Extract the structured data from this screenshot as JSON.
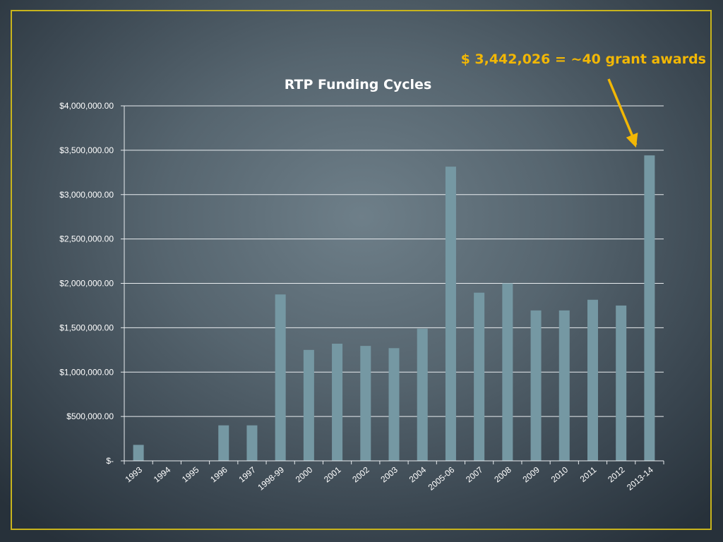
{
  "colors": {
    "frame": "#c8b41c",
    "bar": "#7598a3",
    "grid": "#e8ecef",
    "annotation": "#f2b705",
    "text": "#ffffff"
  },
  "annotation": {
    "text": "$ 3,442,026 = ~40 grant awards",
    "points_to": "2013-14"
  },
  "chart_data": {
    "type": "bar",
    "title": "RTP Funding Cycles",
    "xlabel": "",
    "ylabel": "",
    "ylim": [
      0,
      4000000
    ],
    "grid": true,
    "legend": "none",
    "yticks": [
      0,
      500000,
      1000000,
      1500000,
      2000000,
      2500000,
      3000000,
      3500000,
      4000000
    ],
    "ytick_labels": [
      "$-",
      "$500,000.00",
      "$1,000,000.00",
      "$1,500,000.00",
      "$2,000,000.00",
      "$2,500,000.00",
      "$3,000,000.00",
      "$3,500,000.00",
      "$4,000,000.00"
    ],
    "categories": [
      "1993",
      "1994",
      "1995",
      "1996",
      "1997",
      "1998-99",
      "2000",
      "2001",
      "2002",
      "2003",
      "2004",
      "2005-06",
      "2007",
      "2008",
      "2009",
      "2010",
      "2011",
      "2012",
      "2013-14"
    ],
    "values": [
      180000,
      0,
      0,
      400000,
      400000,
      1875000,
      1250000,
      1320000,
      1295000,
      1270000,
      1490000,
      3315000,
      1895000,
      2000000,
      1695000,
      1695000,
      1815000,
      1750000,
      3442026
    ]
  }
}
